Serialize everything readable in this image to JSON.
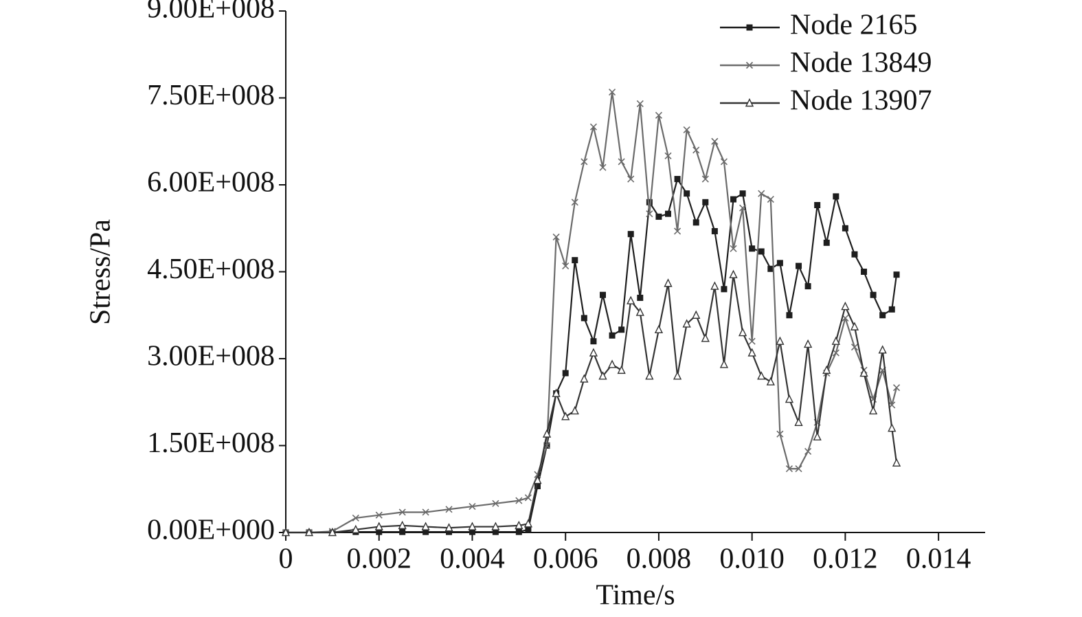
{
  "chart_data": {
    "type": "line",
    "x_label": "Time/s",
    "y_label": "Stress/Pa",
    "xlim": [
      0,
      0.015
    ],
    "ylim": [
      0,
      900000000
    ],
    "xticks": [
      0,
      0.002,
      0.004,
      0.006,
      0.008,
      {
        "value": 0.01,
        "label": "0.010"
      },
      0.012,
      0.014
    ],
    "yticks": [
      {
        "value": 0,
        "label": "0.00E+000"
      },
      {
        "value": 150000000,
        "label": "1.50E+008"
      },
      {
        "value": 300000000,
        "label": "3.00E+008"
      },
      {
        "value": 450000000,
        "label": "4.50E+008"
      },
      {
        "value": 600000000,
        "label": "6.00E+008"
      },
      {
        "value": 750000000,
        "label": "7.50E+008"
      },
      {
        "value": 900000000,
        "label": "9.00E+008"
      }
    ],
    "legend": "top-right",
    "x": [
      0,
      0.0005,
      0.001,
      0.0015,
      0.002,
      0.0025,
      0.003,
      0.0035,
      0.004,
      0.0045,
      0.005,
      0.0052,
      0.0054,
      0.0056,
      0.0058,
      0.006,
      0.0062,
      0.0064,
      0.0066,
      0.0068,
      0.007,
      0.0072,
      0.0074,
      0.0076,
      0.0078,
      0.008,
      0.0082,
      0.0084,
      0.0086,
      0.0088,
      0.009,
      0.0092,
      0.0094,
      0.0096,
      0.0098,
      0.01,
      0.0102,
      0.0104,
      0.0106,
      0.0108,
      0.011,
      0.0112,
      0.0114,
      0.0116,
      0.0118,
      0.012,
      0.0122,
      0.0124,
      0.0126,
      0.0128,
      0.013,
      0.0131
    ],
    "series": [
      {
        "name": "Node 2165",
        "color": "#1e1e1e",
        "marker": "square",
        "values": [
          0,
          0,
          0,
          1000000.0,
          1000000.0,
          1000000.0,
          1000000.0,
          1000000.0,
          1000000.0,
          1000000.0,
          1000000.0,
          5000000.0,
          80000000.0,
          150000000.0,
          240000000.0,
          275000000.0,
          470000000.0,
          370000000.0,
          330000000.0,
          410000000.0,
          340000000.0,
          350000000.0,
          515000000.0,
          405000000.0,
          570000000.0,
          545000000.0,
          550000000.0,
          610000000.0,
          585000000.0,
          535000000.0,
          570000000.0,
          520000000.0,
          420000000.0,
          575000000.0,
          585000000.0,
          490000000.0,
          485000000.0,
          455000000.0,
          465000000.0,
          375000000.0,
          460000000.0,
          425000000.0,
          565000000.0,
          500000000.0,
          580000000.0,
          525000000.0,
          480000000.0,
          450000000.0,
          410000000.0,
          375000000.0,
          385000000.0,
          445000000.0
        ]
      },
      {
        "name": "Node 13849",
        "color": "#6a6a6a",
        "marker": "cross",
        "values": [
          0,
          0,
          2000000.0,
          25000000.0,
          30000000.0,
          35000000.0,
          35000000.0,
          40000000.0,
          45000000.0,
          50000000.0,
          55000000.0,
          60000000.0,
          100000000.0,
          150000000.0,
          510000000.0,
          460000000.0,
          570000000.0,
          640000000.0,
          700000000.0,
          630000000.0,
          760000000.0,
          640000000.0,
          610000000.0,
          740000000.0,
          550000000.0,
          720000000.0,
          650000000.0,
          520000000.0,
          695000000.0,
          660000000.0,
          610000000.0,
          675000000.0,
          640000000.0,
          490000000.0,
          560000000.0,
          330000000.0,
          585000000.0,
          575000000.0,
          170000000.0,
          110000000.0,
          110000000.0,
          140000000.0,
          190000000.0,
          275000000.0,
          310000000.0,
          370000000.0,
          320000000.0,
          280000000.0,
          230000000.0,
          280000000.0,
          220000000.0,
          250000000.0
        ]
      },
      {
        "name": "Node 13907",
        "color": "#333333",
        "marker": "triangle",
        "values": [
          0,
          0,
          0,
          5000000.0,
          10000000.0,
          12000000.0,
          10000000.0,
          8000000.0,
          10000000.0,
          10000000.0,
          12000000.0,
          15000000.0,
          90000000.0,
          170000000.0,
          240000000.0,
          200000000.0,
          210000000.0,
          265000000.0,
          310000000.0,
          270000000.0,
          290000000.0,
          280000000.0,
          400000000.0,
          380000000.0,
          270000000.0,
          350000000.0,
          430000000.0,
          270000000.0,
          360000000.0,
          375000000.0,
          335000000.0,
          425000000.0,
          290000000.0,
          445000000.0,
          345000000.0,
          310000000.0,
          270000000.0,
          260000000.0,
          330000000.0,
          230000000.0,
          190000000.0,
          325000000.0,
          165000000.0,
          280000000.0,
          330000000.0,
          390000000.0,
          355000000.0,
          275000000.0,
          210000000.0,
          315000000.0,
          180000000.0,
          120000000.0
        ]
      }
    ]
  }
}
